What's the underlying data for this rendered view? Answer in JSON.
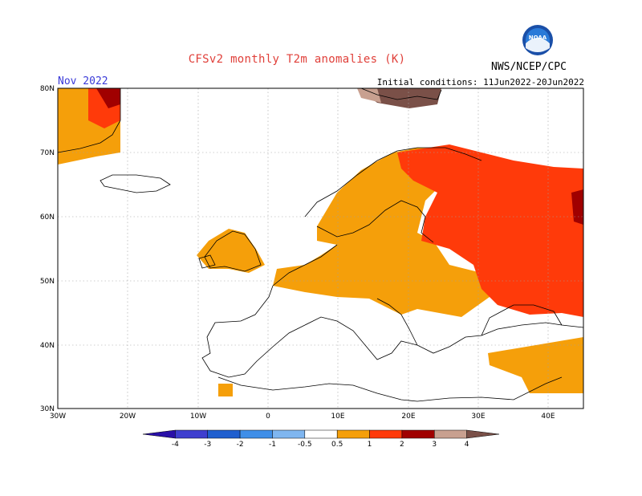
{
  "header": {
    "title": "CFSv2 monthly T2m anomalies (K)",
    "period": "Nov 2022",
    "initial_conditions": "Initial conditions: 11Jun2022-20Jun2022",
    "agency": "NWS/NCEP/CPC",
    "logo_text": "NOAA"
  },
  "map": {
    "lon_ticks": [
      "30W",
      "20W",
      "10W",
      "0",
      "10E",
      "20E",
      "30E",
      "40E"
    ],
    "lat_ticks": [
      "80N",
      "70N",
      "60N",
      "50N",
      "40N",
      "30N"
    ]
  },
  "legend": {
    "labels": [
      "-4",
      "-3",
      "-2",
      "-1",
      "-0.5",
      "0.5",
      "1",
      "2",
      "3",
      "4"
    ],
    "colors": [
      "#2a10a8",
      "#3f3fcf",
      "#1f5fcf",
      "#3f8fe8",
      "#7fb6f0",
      "#ffffff",
      "#f59f0a",
      "#ff3a0a",
      "#a00000",
      "#c8a090",
      "#7a5048"
    ]
  }
}
